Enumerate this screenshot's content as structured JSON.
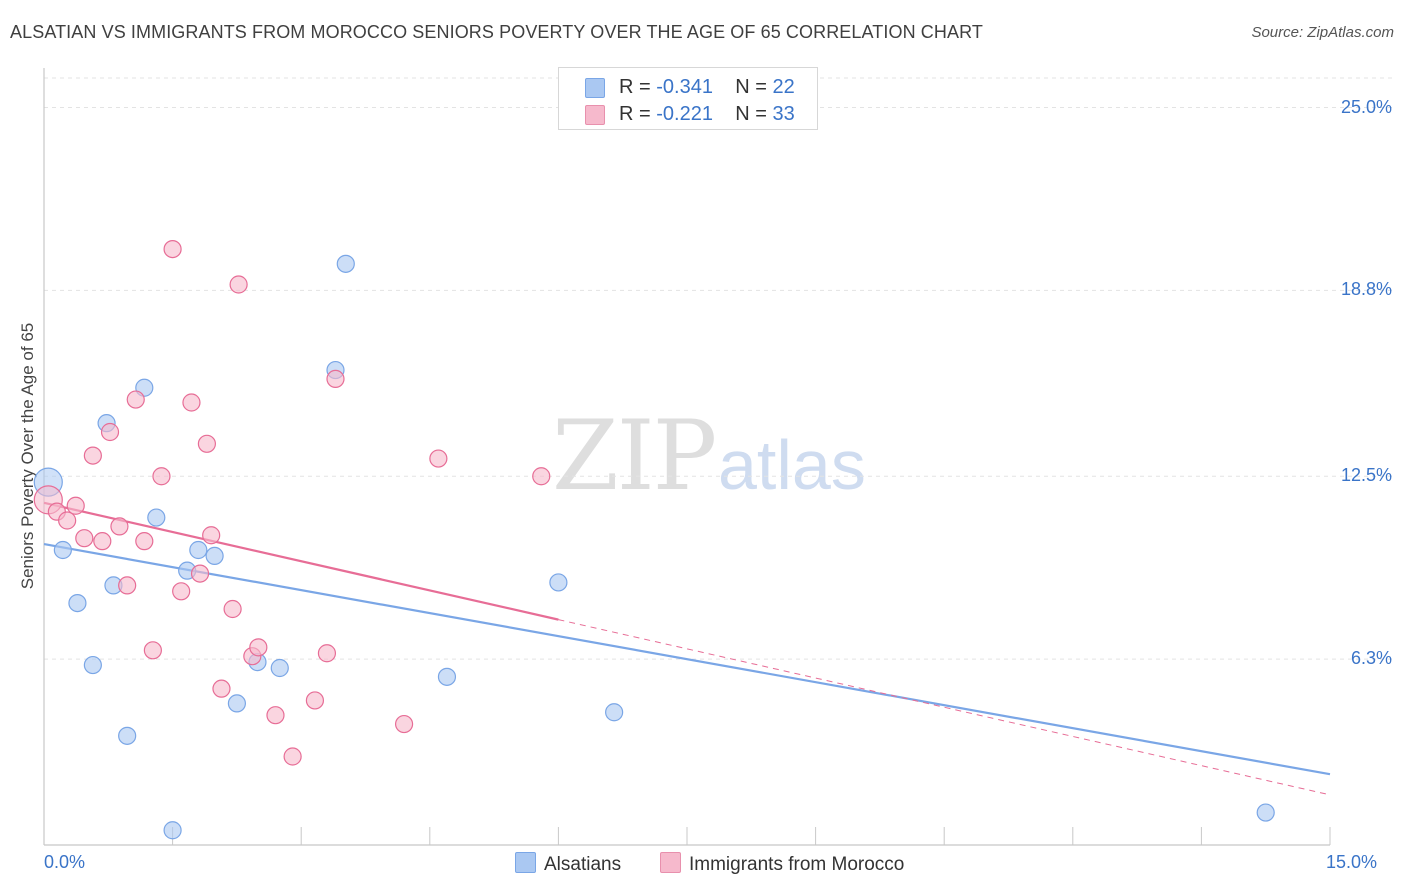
{
  "header": {
    "title": "ALSATIAN VS IMMIGRANTS FROM MOROCCO SENIORS POVERTY OVER THE AGE OF 65 CORRELATION CHART",
    "source": "Source: ZipAtlas.com"
  },
  "watermark": {
    "zip": "ZIP",
    "atlas": "atlas"
  },
  "legend": {
    "rows": [
      {
        "r_label": "R = ",
        "r_value": "-0.341",
        "n_label": "N = ",
        "n_value": "22",
        "color": "#aac8f2"
      },
      {
        "r_label": "R = ",
        "r_value": "-0.221",
        "n_label": "N = ",
        "n_value": "33",
        "color": "#f6b9cc"
      }
    ]
  },
  "bottom_legend": [
    {
      "label": "Alsatians",
      "color": "#aac8f2"
    },
    {
      "label": "Immigrants from Morocco",
      "color": "#f6b9cc"
    }
  ],
  "chart_data": {
    "type": "scatter",
    "title": "ALSATIAN VS IMMIGRANTS FROM MOROCCO SENIORS POVERTY OVER THE AGE OF 65 CORRELATION CHART",
    "xlabel": "",
    "ylabel": "Seniors Poverty Over the Age of 65",
    "xlim": [
      0,
      15
    ],
    "ylim": [
      0,
      26
    ],
    "x_tick_labels": [
      "0.0%",
      "15.0%"
    ],
    "y_ticks": [
      6.3,
      12.5,
      18.8,
      25.0
    ],
    "y_tick_labels": [
      "6.3%",
      "12.5%",
      "18.8%",
      "25.0%"
    ],
    "grid": true,
    "series": [
      {
        "name": "Alsatians",
        "color": "#7aa6e6",
        "fill": "#aac8f2",
        "trend": {
          "x0": 0,
          "y0": 10.2,
          "x1": 15,
          "y1": 2.4,
          "solid_until": 15
        },
        "points": [
          [
            0.05,
            12.3
          ],
          [
            0.22,
            10.0
          ],
          [
            0.39,
            8.2
          ],
          [
            0.57,
            6.1
          ],
          [
            0.73,
            14.3
          ],
          [
            0.81,
            8.8
          ],
          [
            0.97,
            3.7
          ],
          [
            1.17,
            15.5
          ],
          [
            1.31,
            11.1
          ],
          [
            1.5,
            0.5
          ],
          [
            1.67,
            9.3
          ],
          [
            1.8,
            10.0
          ],
          [
            1.99,
            9.8
          ],
          [
            2.25,
            4.8
          ],
          [
            2.49,
            6.2
          ],
          [
            2.75,
            6.0
          ],
          [
            3.4,
            16.1
          ],
          [
            3.52,
            19.7
          ],
          [
            4.7,
            5.7
          ],
          [
            6.0,
            8.9
          ],
          [
            6.65,
            4.5
          ],
          [
            14.25,
            1.1
          ]
        ]
      },
      {
        "name": "Immigrants from Morocco",
        "color": "#e76d96",
        "fill": "#f6b9cc",
        "trend": {
          "x0": 0,
          "y0": 11.6,
          "x1": 15,
          "y1": 1.7,
          "solid_until": 6.0
        },
        "points": [
          [
            0.05,
            11.7
          ],
          [
            0.15,
            11.3
          ],
          [
            0.27,
            11.0
          ],
          [
            0.37,
            11.5
          ],
          [
            0.47,
            10.4
          ],
          [
            0.57,
            13.2
          ],
          [
            0.68,
            10.3
          ],
          [
            0.77,
            14.0
          ],
          [
            0.88,
            10.8
          ],
          [
            0.97,
            8.8
          ],
          [
            1.07,
            15.1
          ],
          [
            1.17,
            10.3
          ],
          [
            1.27,
            6.6
          ],
          [
            1.37,
            12.5
          ],
          [
            1.5,
            20.2
          ],
          [
            1.6,
            8.6
          ],
          [
            1.72,
            15.0
          ],
          [
            1.82,
            9.2
          ],
          [
            1.9,
            13.6
          ],
          [
            1.95,
            10.5
          ],
          [
            2.07,
            5.3
          ],
          [
            2.2,
            8.0
          ],
          [
            2.27,
            19.0
          ],
          [
            2.43,
            6.4
          ],
          [
            2.5,
            6.7
          ],
          [
            2.7,
            4.4
          ],
          [
            2.9,
            3.0
          ],
          [
            3.16,
            4.9
          ],
          [
            3.3,
            6.5
          ],
          [
            3.4,
            15.8
          ],
          [
            4.2,
            4.1
          ],
          [
            4.6,
            13.1
          ],
          [
            5.8,
            12.5
          ]
        ]
      }
    ]
  }
}
